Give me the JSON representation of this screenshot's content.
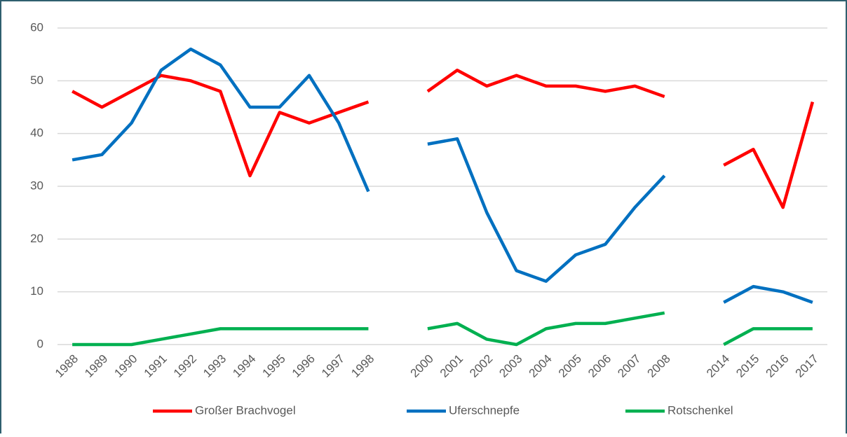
{
  "chart_data": {
    "type": "line",
    "categories": [
      "1988",
      "1989",
      "1990",
      "1991",
      "1992",
      "1993",
      "1994",
      "1995",
      "1996",
      "1997",
      "1998",
      null,
      "2000",
      "2001",
      "2002",
      "2003",
      "2004",
      "2005",
      "2006",
      "2007",
      "2008",
      null,
      "2014",
      "2015",
      "2016",
      "2017"
    ],
    "series": [
      {
        "name": "Großer Brachvogel",
        "color": "#ff0000",
        "values": [
          48,
          45,
          48,
          51,
          50,
          48,
          32,
          44,
          42,
          44,
          46,
          null,
          48,
          52,
          49,
          51,
          49,
          49,
          48,
          49,
          47,
          null,
          34,
          37,
          26,
          46
        ]
      },
      {
        "name": "Uferschnepfe",
        "color": "#0070c0",
        "values": [
          35,
          36,
          42,
          52,
          56,
          53,
          45,
          45,
          51,
          42,
          29,
          null,
          38,
          39,
          25,
          14,
          12,
          17,
          19,
          26,
          32,
          null,
          8,
          11,
          10,
          8
        ]
      },
      {
        "name": "Rotschenkel",
        "color": "#00b050",
        "values": [
          0,
          0,
          0,
          1,
          2,
          3,
          3,
          3,
          3,
          3,
          3,
          null,
          3,
          4,
          1,
          0,
          3,
          4,
          4,
          5,
          6,
          null,
          0,
          3,
          3,
          3
        ]
      }
    ],
    "ylim": [
      0,
      60
    ],
    "yticks": [
      0,
      10,
      20,
      30,
      40,
      50,
      60
    ],
    "grid": true,
    "legend": "bottom"
  }
}
